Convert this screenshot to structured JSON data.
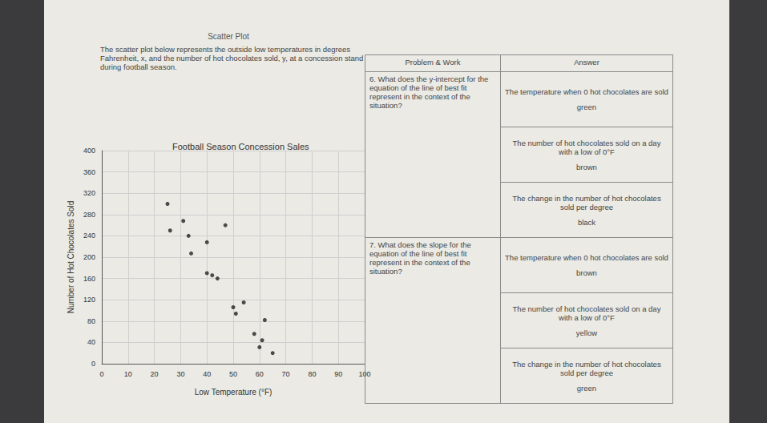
{
  "header": "Scatter Plot",
  "intro": "The scatter plot below represents the outside low temperatures in degrees Fahrenheit, x, and the number of hot chocolates sold, y, at a concession stand during football season.",
  "table": {
    "headers": [
      "Problem & Work",
      "Answer"
    ],
    "rows": [
      {
        "problem": "6. What does the y-intercept for the equation of the line of best fit represent in the context of the situation?",
        "answers": [
          {
            "text": "The temperature when 0 hot chocolates are sold",
            "code": "green"
          },
          {
            "text": "The number of hot chocolates sold on a day with a low of 0°F",
            "code": "brown"
          },
          {
            "text": "The change in the number of hot chocolates sold per degree",
            "code": "black"
          }
        ]
      },
      {
        "problem": "7. What does the slope for the equation of the line of best fit represent in the context of the situation?",
        "answers": [
          {
            "text": "The temperature when 0 hot chocolates are sold",
            "code": "brown"
          },
          {
            "text": "The number of hot chocolates sold on a day with a low of 0°F",
            "code": "yellow"
          },
          {
            "text": "The change in the number of hot chocolates sold per degree",
            "code": "green"
          }
        ]
      }
    ]
  },
  "chart_data": {
    "type": "scatter",
    "title": "Football Season Concession Sales",
    "x_label": "Low Temperature (°F)",
    "y_label": "Number of Hot Chocolates Sold",
    "x": [
      25,
      31,
      26,
      33,
      47,
      40,
      34,
      40,
      42,
      44,
      54,
      50,
      51,
      62,
      58,
      61,
      65,
      60
    ],
    "values": [
      300,
      268,
      250,
      240,
      260,
      228,
      207,
      170,
      166,
      160,
      115,
      106,
      94,
      82,
      56,
      44,
      20,
      31
    ],
    "xlim": [
      0,
      100
    ],
    "xticks": [
      0,
      10,
      20,
      30,
      40,
      50,
      60,
      70,
      80,
      90,
      100
    ],
    "ylim": [
      0,
      400
    ],
    "yticks": [
      0,
      40,
      80,
      120,
      160,
      200,
      240,
      280,
      320,
      360,
      400
    ],
    "grid": true,
    "color": "#222222",
    "marker": "circle"
  }
}
